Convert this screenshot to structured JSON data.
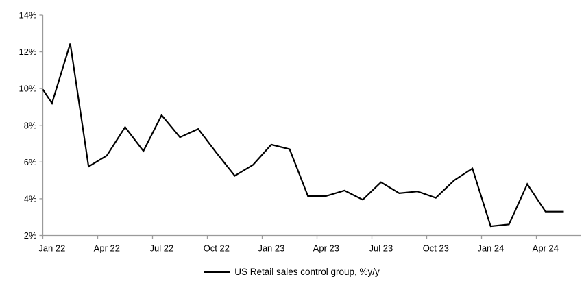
{
  "chart_data": {
    "type": "line",
    "title": "",
    "x": [
      "Jan 22",
      "Feb 22",
      "Mar 22",
      "Apr 22",
      "May 22",
      "Jun 22",
      "Jul 22",
      "Aug 22",
      "Sep 22",
      "Oct 22",
      "Nov 22",
      "Dec 22",
      "Jan 23",
      "Feb 23",
      "Mar 23",
      "Apr 23",
      "May 23",
      "Jun 23",
      "Jul 23",
      "Aug 23",
      "Sep 23",
      "Oct 23",
      "Nov 23",
      "Dec 23",
      "Jan 24",
      "Feb 24",
      "Mar 24",
      "Apr 24",
      "May 24"
    ],
    "series": [
      {
        "name": "US Retail sales control group, %y/y",
        "color": "#000000",
        "values": [
          9.2,
          12.45,
          5.75,
          6.35,
          7.9,
          6.6,
          8.55,
          7.35,
          7.8,
          6.5,
          5.25,
          5.85,
          6.95,
          6.7,
          4.15,
          4.15,
          4.45,
          3.95,
          4.9,
          4.3,
          4.4,
          4.05,
          5.0,
          5.65,
          2.5,
          2.6,
          4.8,
          3.3,
          3.3
        ]
      }
    ],
    "axis_entry_value": 9.95,
    "ylim": [
      2,
      14
    ],
    "y_tick_step": 2,
    "y_tick_labels": [
      "2%",
      "4%",
      "6%",
      "8%",
      "10%",
      "12%",
      "14%"
    ],
    "x_tick_every_months": 3,
    "x_tick_labels": [
      "Jan 22",
      "Apr 22",
      "Jul 22",
      "Oct 22",
      "Jan 23",
      "Apr 23",
      "Jul 23",
      "Oct 23",
      "Jan 24",
      "Apr 24"
    ],
    "grid": false,
    "legend_position": "bottom-center",
    "axis_color": "#9a9a9a",
    "text_color": "#000000",
    "background_color": "#ffffff",
    "line_width": 2.2
  }
}
